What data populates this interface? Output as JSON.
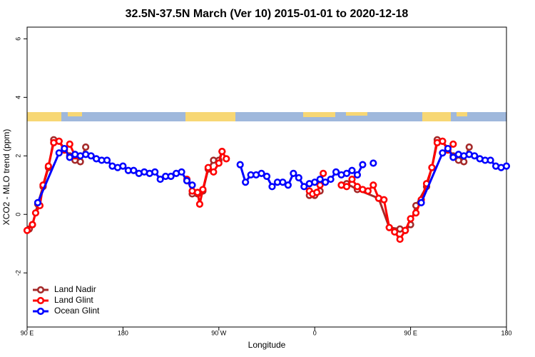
{
  "chart_data": {
    "type": "line",
    "title": "32.5N-37.5N March (Ver 10)   2015-01-01 to 2020-12-18",
    "x_label": "Longitude",
    "y_label": "XCO2 - MLO trend (ppm)",
    "xlim": [
      90,
      540
    ],
    "xticks": [
      {
        "value": 90,
        "label": "90 E"
      },
      180,
      {
        "value": 270,
        "label": "90 W"
      },
      {
        "value": 360,
        "label": "0"
      },
      {
        "value": 450,
        "label": "90 E"
      },
      {
        "value": 540,
        "label": "180"
      }
    ],
    "ylim": [
      -3.85,
      6.4
    ],
    "yticks": [
      -2,
      0,
      2,
      4,
      6
    ],
    "legend": "bottom-left",
    "series": [
      {
        "name": "Land Nadir",
        "color": "#a52a2a",
        "x": [
          92,
          95,
          100,
          105,
          110,
          115,
          120,
          130,
          135,
          140,
          145,
          200,
          245,
          250,
          255,
          260,
          265,
          270,
          273,
          300,
          355,
          360,
          365,
          370,
          385,
          390,
          400,
          420,
          430,
          440,
          445,
          450,
          455,
          465,
          470,
          475,
          480,
          490,
          495,
          500,
          505
        ],
        "values": [
          -0.5,
          -0.35,
          0.35,
          0.95,
          1.6,
          2.55,
          2.5,
          2.0,
          1.85,
          1.8,
          2.3,
          null,
          0.7,
          0.7,
          0.8,
          1.55,
          1.85,
          1.85,
          2.15,
          null,
          0.65,
          0.65,
          0.8,
          null,
          1.0,
          1.05,
          0.85,
          0.55,
          -0.45,
          -0.5,
          -0.55,
          -0.35,
          0.3,
          0.95,
          1.6,
          2.55,
          2.5,
          2.0,
          1.85,
          1.8,
          2.3
        ]
      },
      {
        "name": "Land Glint",
        "color": "#ff0000",
        "x": [
          90,
          95,
          98,
          102,
          105,
          110,
          115,
          120,
          125,
          130,
          135,
          200,
          240,
          245,
          250,
          252,
          255,
          260,
          265,
          270,
          273,
          277,
          300,
          355,
          358,
          362,
          365,
          368,
          375,
          385,
          390,
          395,
          400,
          405,
          410,
          415,
          420,
          425,
          430,
          435,
          440,
          445,
          450,
          455,
          460,
          465,
          470,
          475,
          480,
          485,
          490
        ],
        "values": [
          -0.55,
          -0.35,
          0.05,
          0.3,
          1.0,
          1.65,
          2.45,
          2.5,
          2.2,
          2.4,
          2.0,
          null,
          1.2,
          0.8,
          0.75,
          0.35,
          0.85,
          1.6,
          1.45,
          1.75,
          2.15,
          1.9,
          null,
          0.8,
          0.7,
          0.75,
          1.0,
          1.4,
          null,
          1.0,
          0.95,
          1.2,
          0.95,
          0.85,
          0.8,
          1.0,
          0.55,
          0.5,
          -0.45,
          -0.6,
          -0.85,
          -0.55,
          -0.15,
          0.05,
          0.5,
          1.05,
          1.6,
          2.45,
          2.5,
          2.2,
          2.4
        ]
      },
      {
        "name": "Ocean Glint",
        "color": "#0000ff",
        "x": [
          100,
          120,
          125,
          130,
          135,
          140,
          145,
          150,
          155,
          160,
          165,
          170,
          175,
          180,
          185,
          190,
          195,
          200,
          205,
          210,
          215,
          220,
          225,
          230,
          235,
          240,
          245,
          250,
          290,
          295,
          300,
          305,
          310,
          315,
          320,
          325,
          330,
          335,
          340,
          345,
          350,
          355,
          360,
          365,
          370,
          375,
          380,
          385,
          390,
          395,
          400,
          405,
          410,
          415,
          420,
          460,
          480,
          485,
          490,
          495,
          500,
          505,
          510,
          515,
          520,
          525,
          530,
          535,
          540
        ],
        "values": [
          0.4,
          2.1,
          2.25,
          1.95,
          2.05,
          2.0,
          2.05,
          2.0,
          1.9,
          1.85,
          1.85,
          1.65,
          1.6,
          1.65,
          1.5,
          1.5,
          1.4,
          1.45,
          1.4,
          1.45,
          1.2,
          1.3,
          1.3,
          1.4,
          1.45,
          1.15,
          1.0,
          null,
          1.7,
          1.1,
          1.35,
          1.35,
          1.4,
          1.3,
          0.95,
          1.1,
          1.1,
          1.0,
          1.4,
          1.25,
          0.95,
          1.05,
          1.1,
          1.2,
          1.1,
          1.2,
          1.45,
          1.35,
          1.4,
          1.5,
          1.35,
          1.7,
          null,
          1.75,
          null,
          0.4,
          2.1,
          2.25,
          1.95,
          2.05,
          2.0,
          2.05,
          2.0,
          1.9,
          1.85,
          1.85,
          1.65,
          1.6,
          1.65
        ]
      }
    ]
  }
}
